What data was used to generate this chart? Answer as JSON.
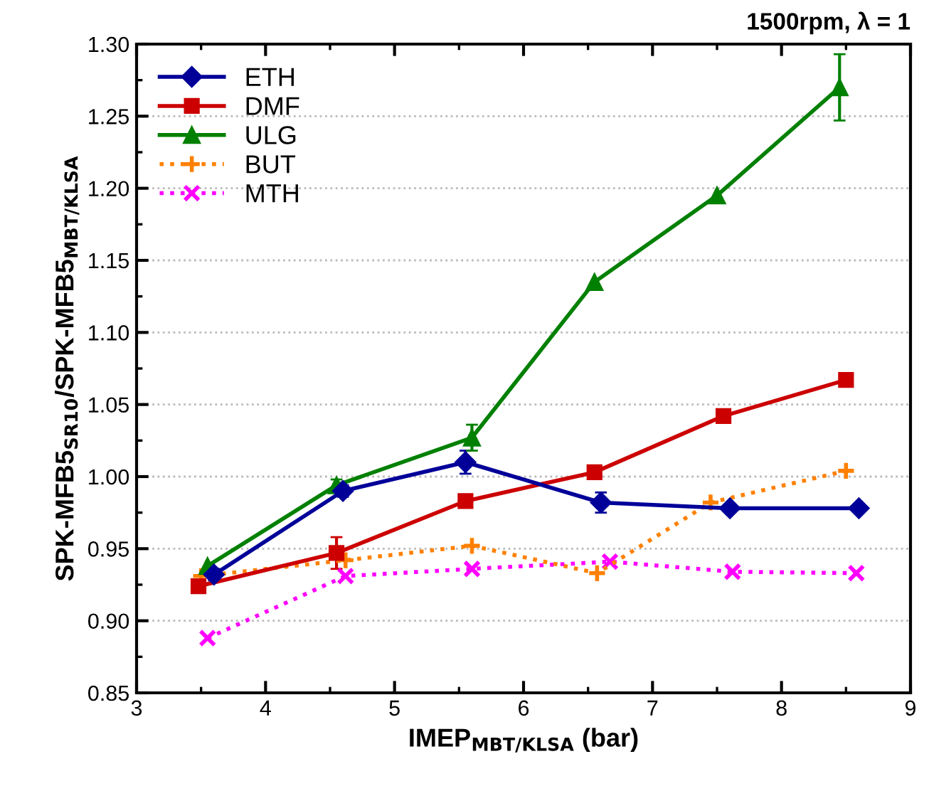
{
  "chart_data": {
    "type": "line",
    "xlabel": "IMEP$_{MBT/KLSA}$ (bar)",
    "ylabel": "SPK-MFB5$_{SR10}$/SPK-MFB5$_{MBT/KLSA}$",
    "annotations": [
      "1500rpm, λ = 1"
    ],
    "xlim": [
      3,
      9
    ],
    "xticks": [
      3,
      4,
      5,
      6,
      7,
      8,
      9
    ],
    "ylim": [
      0.85,
      1.3
    ],
    "yticks": [
      0.85,
      {
        "value": 0.9,
        "label": "0.90"
      },
      0.95,
      {
        "value": 1.0,
        "label": "1.00"
      },
      1.05,
      {
        "value": 1.1,
        "label": "1.10"
      },
      1.15,
      {
        "value": 1.2,
        "label": "1.20"
      },
      1.25,
      {
        "value": 1.3,
        "label": "1.30"
      }
    ],
    "grid": "y",
    "legend": "top left",
    "series": [
      {
        "name": "ETH",
        "color": "#000099",
        "marker": "diamond",
        "line_style": "solid",
        "x": [
          3.6,
          4.6,
          5.55,
          6.6,
          7.6,
          8.6
        ],
        "values": [
          0.932,
          0.99,
          1.01,
          0.982,
          0.978,
          0.978
        ],
        "errors": [
          0.004,
          0.004,
          0.008,
          0.007,
          null,
          null
        ]
      },
      {
        "name": "DMF",
        "color": "#cc0000",
        "marker": "square",
        "line_style": "solid",
        "x": [
          3.48,
          4.55,
          5.55,
          6.55,
          7.55,
          8.5
        ],
        "values": [
          0.924,
          0.947,
          0.983,
          1.003,
          1.042,
          1.067
        ],
        "errors": [
          null,
          0.011,
          null,
          null,
          null,
          null
        ]
      },
      {
        "name": "ULG",
        "color": "#008000",
        "marker": "triangle",
        "line_style": "solid",
        "x": [
          3.55,
          4.55,
          5.6,
          6.55,
          7.5,
          8.45
        ],
        "values": [
          0.938,
          0.994,
          1.027,
          1.135,
          1.195,
          1.27
        ],
        "errors": [
          null,
          0.004,
          0.009,
          null,
          null,
          0.023
        ]
      },
      {
        "name": "BUT",
        "color": "#ff8000",
        "marker": "cross",
        "line_style": "dotted",
        "x": [
          3.5,
          4.62,
          5.6,
          6.57,
          7.45,
          8.5
        ],
        "values": [
          0.931,
          0.942,
          0.952,
          0.933,
          0.982,
          1.004
        ]
      },
      {
        "name": "MTH",
        "color": "#ff00ff",
        "marker": "x",
        "line_style": "dotted",
        "x": [
          3.55,
          4.62,
          5.6,
          6.67,
          7.62,
          8.58
        ],
        "values": [
          0.888,
          0.931,
          0.936,
          0.941,
          0.934,
          0.933
        ]
      }
    ]
  }
}
